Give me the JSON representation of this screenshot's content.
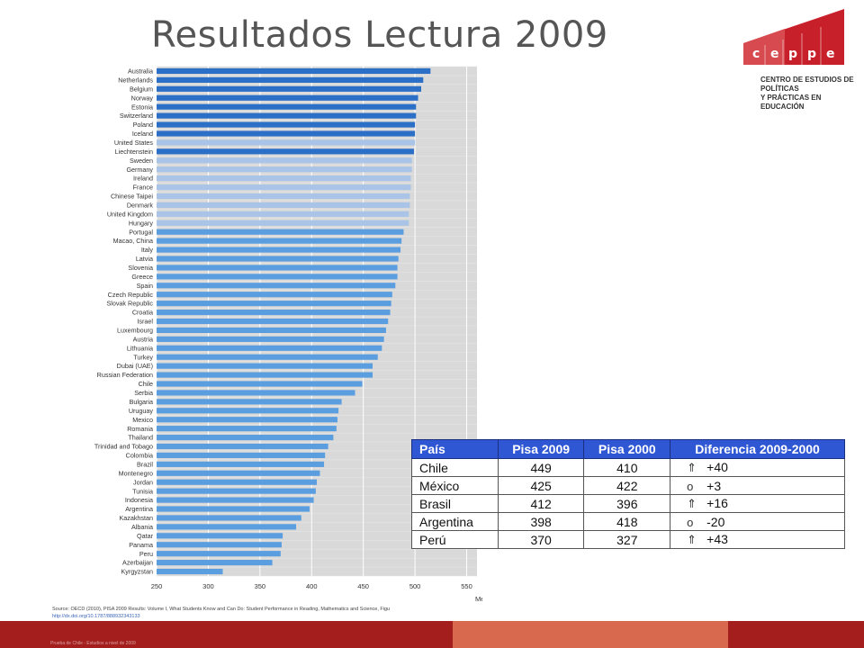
{
  "slide": {
    "title": "Resultados Lectura 2009"
  },
  "logo": {
    "letters": [
      "c",
      "e",
      "p",
      "p",
      "e"
    ],
    "subtitle": "CENTRO DE ESTUDIOS DE POLÍTICAS\nY PRÁCTICAS EN EDUCACIÓN",
    "colors": {
      "primary": "#c8202a",
      "light": "#e8878a"
    }
  },
  "chart_data": {
    "type": "bar",
    "orientation": "horizontal",
    "categories": [
      "Australia",
      "Netherlands",
      "Belgium",
      "Norway",
      "Estonia",
      "Switzerland",
      "Poland",
      "Iceland",
      "United States",
      "Liechtenstein",
      "Sweden",
      "Germany",
      "Ireland",
      "France",
      "Chinese Taipei",
      "Denmark",
      "United Kingdom",
      "Hungary",
      "Portugal",
      "Macao, China",
      "Italy",
      "Latvia",
      "Slovenia",
      "Greece",
      "Spain",
      "Czech Republic",
      "Slovak Republic",
      "Croatia",
      "Israel",
      "Luxembourg",
      "Austria",
      "Lithuania",
      "Turkey",
      "Dubai (UAE)",
      "Russian Federation",
      "Chile",
      "Serbia",
      "Bulgaria",
      "Uruguay",
      "Mexico",
      "Romania",
      "Thailand",
      "Trinidad and Tobago",
      "Colombia",
      "Brazil",
      "Montenegro",
      "Jordan",
      "Tunisia",
      "Indonesia",
      "Argentina",
      "Kazakhstan",
      "Albania",
      "Qatar",
      "Panama",
      "Peru",
      "Azerbaijan",
      "Kyrgyzstan"
    ],
    "values": [
      515,
      508,
      506,
      503,
      501,
      501,
      500,
      500,
      500,
      499,
      497,
      497,
      496,
      496,
      495,
      495,
      494,
      494,
      489,
      487,
      486,
      484,
      483,
      483,
      481,
      478,
      477,
      476,
      474,
      472,
      470,
      468,
      464,
      459,
      459,
      449,
      442,
      429,
      426,
      425,
      424,
      421,
      416,
      413,
      412,
      408,
      405,
      404,
      402,
      398,
      390,
      385,
      372,
      371,
      370,
      362,
      314
    ],
    "bar_tiers": [
      "dark",
      "dark",
      "dark",
      "dark",
      "dark",
      "dark",
      "dark",
      "dark",
      "light",
      "dark",
      "light",
      "light",
      "light",
      "light",
      "light",
      "light",
      "light",
      "light",
      "mid",
      "mid",
      "mid",
      "mid",
      "mid",
      "mid",
      "mid",
      "mid",
      "mid",
      "mid",
      "mid",
      "mid",
      "mid",
      "mid",
      "mid",
      "mid",
      "mid",
      "mid",
      "mid",
      "mid",
      "mid",
      "mid",
      "mid",
      "mid",
      "mid",
      "mid",
      "mid",
      "mid",
      "mid",
      "mid",
      "mid",
      "mid",
      "mid",
      "mid",
      "mid",
      "mid",
      "mid",
      "mid",
      "mid"
    ],
    "x_ticks": [
      250,
      300,
      350,
      400,
      450,
      500,
      550
    ],
    "xlim": [
      250,
      560
    ],
    "xlabel": "Mea",
    "grid": true,
    "colors": {
      "dark": "#2b6fc6",
      "light": "#a9c4e6",
      "mid": "#5b9ee0",
      "grid_bg": "#d9d9d9",
      "grid_line": "#ffffff"
    }
  },
  "source": {
    "text": "Source: OECD (2010), PISA 2009 Results: Volume I, What Students Know and Can Do: Student Performance in Reading, Mathematics and Science, Figu",
    "link": "http://dx.doi.org/10.1787/888932343133"
  },
  "footer": {
    "text": "Prueba de Chile - Estudios a nivel de 2009",
    "colors": {
      "main": "#a51e1e",
      "accent": "#d8694f"
    }
  },
  "table": {
    "headers": [
      "País",
      "Pisa 2009",
      "Pisa 2000",
      "Diferencia 2009-2000"
    ],
    "rows": [
      {
        "country": "Chile",
        "pisa2009": "449",
        "pisa2000": "410",
        "symbol": "⇑",
        "diff": "+40"
      },
      {
        "country": "México",
        "pisa2009": "425",
        "pisa2000": "422",
        "symbol": "o",
        "diff": "+3"
      },
      {
        "country": "Brasil",
        "pisa2009": "412",
        "pisa2000": "396",
        "symbol": "⇑",
        "diff": "+16"
      },
      {
        "country": "Argentina",
        "pisa2009": "398",
        "pisa2000": "418",
        "symbol": "o",
        "diff": "-20"
      },
      {
        "country": "Perú",
        "pisa2009": "370",
        "pisa2000": "327",
        "symbol": "⇑",
        "diff": "+43"
      }
    ],
    "header_color": "#2f56d3"
  }
}
